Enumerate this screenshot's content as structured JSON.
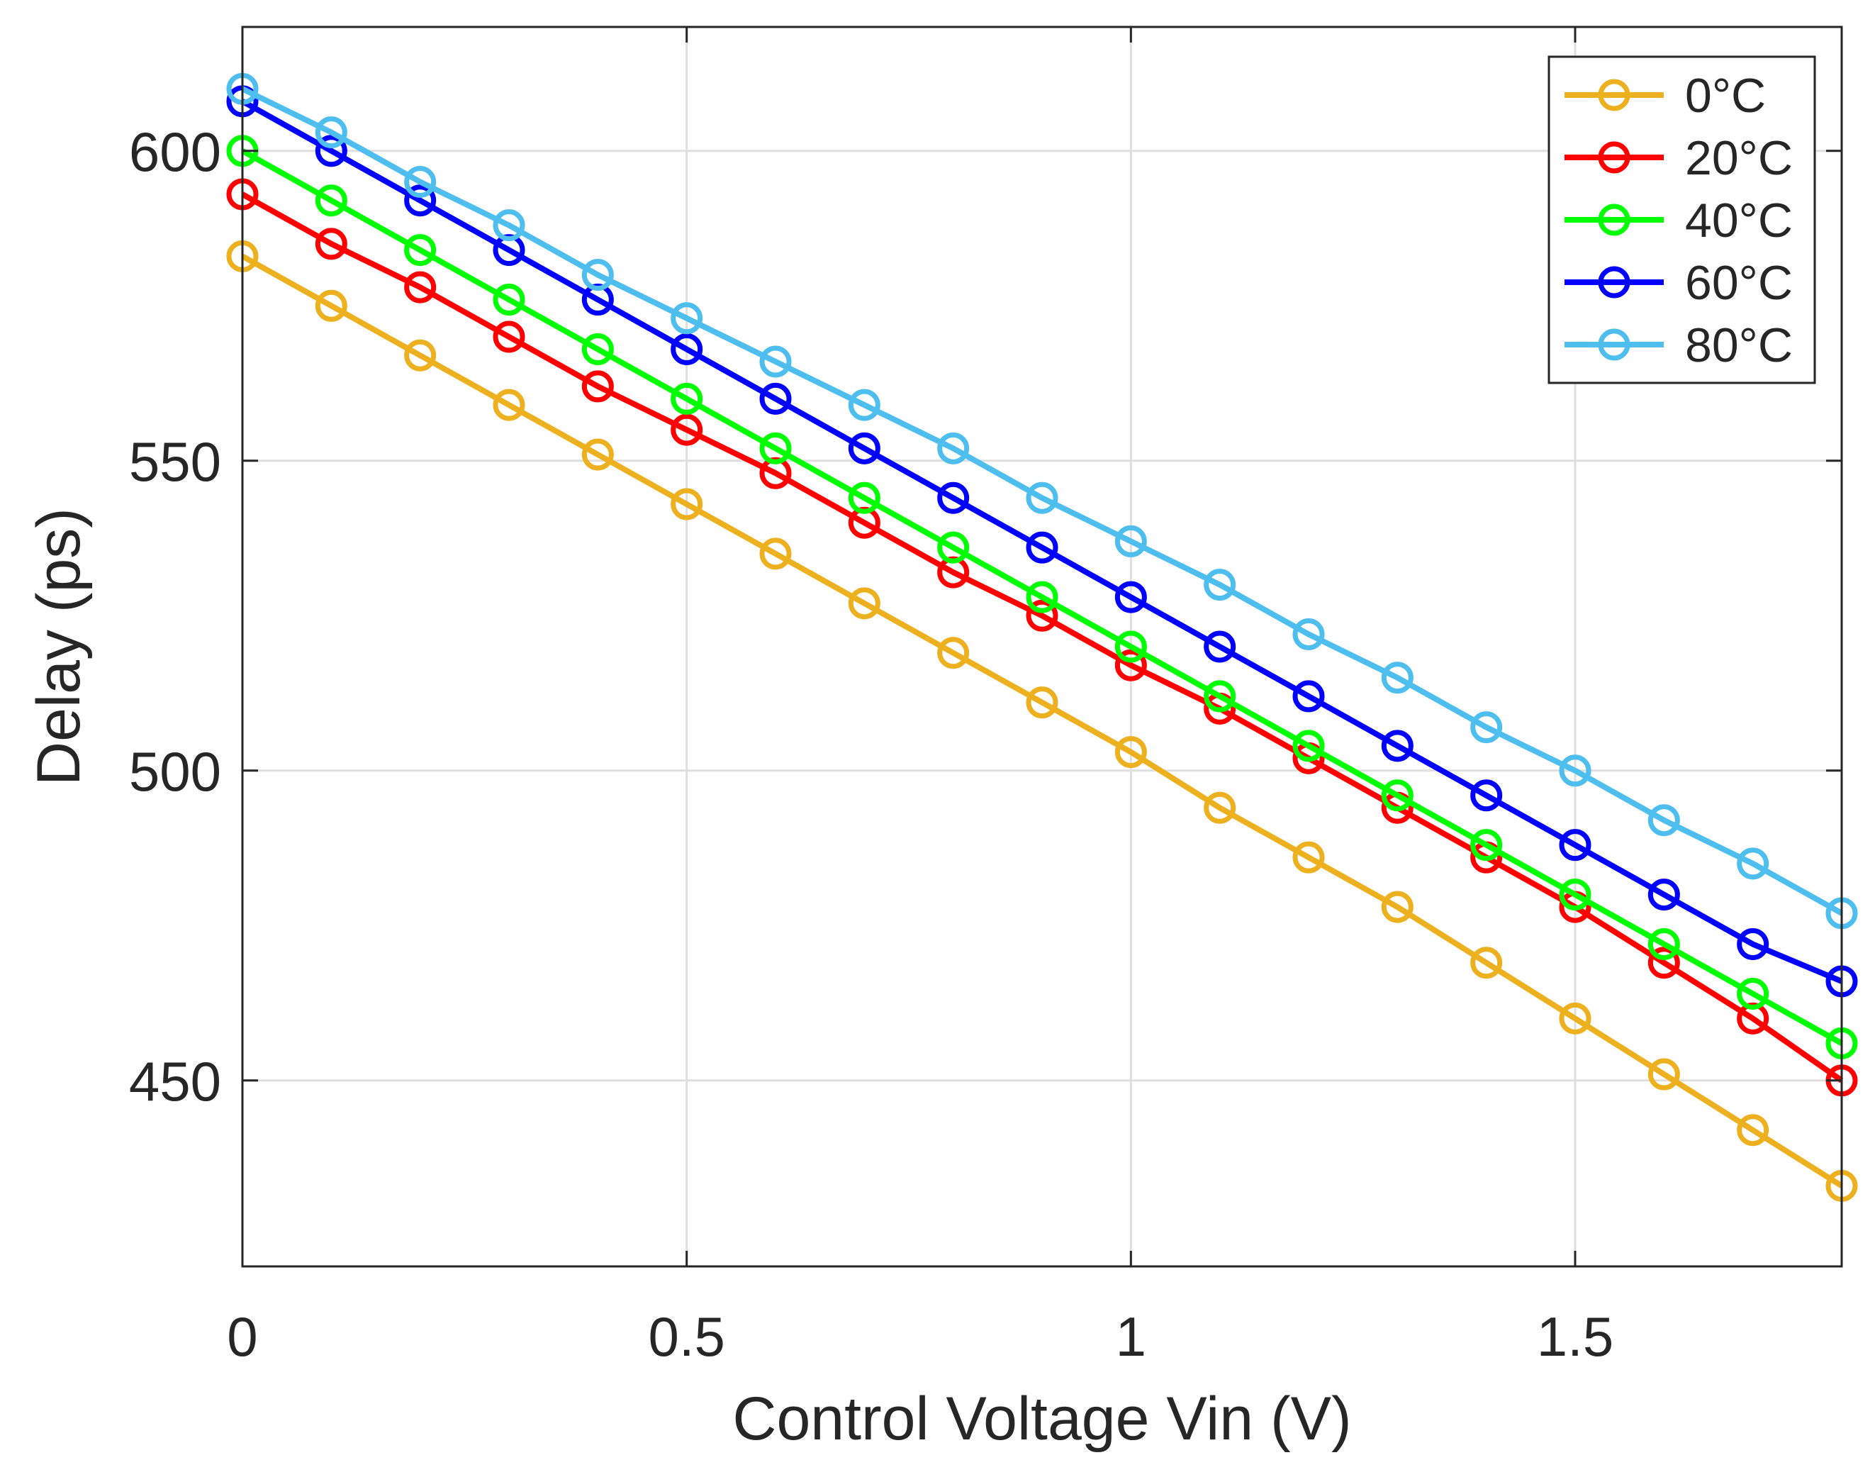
{
  "chart_data": {
    "type": "line",
    "title": "",
    "xlabel": "Control Voltage Vin (V)",
    "ylabel": "Delay (ps)",
    "xlim": [
      0,
      1.8
    ],
    "ylim": [
      420,
      620
    ],
    "xticks": [
      0,
      0.5,
      1,
      1.5
    ],
    "xtick_labels": [
      "0",
      "0.5",
      "1",
      "1.5"
    ],
    "yticks": [
      450,
      500,
      550,
      600
    ],
    "ytick_labels": [
      "450",
      "500",
      "550",
      "600"
    ],
    "grid": true,
    "legend_position": "top-right",
    "marker": "circle",
    "x": [
      0,
      0.1,
      0.2,
      0.3,
      0.4,
      0.5,
      0.6,
      0.7,
      0.8,
      0.9,
      1.0,
      1.1,
      1.2,
      1.3,
      1.4,
      1.5,
      1.6,
      1.7,
      1.8
    ],
    "series": [
      {
        "name": "0°C",
        "color": "#EDB120",
        "values": [
          583,
          575,
          567,
          559,
          551,
          543,
          535,
          527,
          519,
          511,
          503,
          494,
          486,
          478,
          469,
          460,
          451,
          442,
          433
        ]
      },
      {
        "name": "20°C",
        "color": "#FF0000",
        "values": [
          593,
          585,
          578,
          570,
          562,
          555,
          548,
          540,
          532,
          525,
          517,
          510,
          502,
          494,
          486,
          478,
          469,
          460,
          450
        ]
      },
      {
        "name": "40°C",
        "color": "#00FF00",
        "values": [
          600,
          592,
          584,
          576,
          568,
          560,
          552,
          544,
          536,
          528,
          520,
          512,
          504,
          496,
          488,
          480,
          472,
          464,
          456
        ]
      },
      {
        "name": "60°C",
        "color": "#0000FF",
        "values": [
          608,
          600,
          592,
          584,
          576,
          568,
          560,
          552,
          544,
          536,
          528,
          520,
          512,
          504,
          496,
          488,
          480,
          472,
          466
        ]
      },
      {
        "name": "80°C",
        "color": "#4DBEEE",
        "values": [
          610,
          603,
          595,
          588,
          580,
          573,
          566,
          559,
          552,
          544,
          537,
          530,
          522,
          515,
          507,
          500,
          492,
          485,
          477
        ]
      }
    ]
  }
}
